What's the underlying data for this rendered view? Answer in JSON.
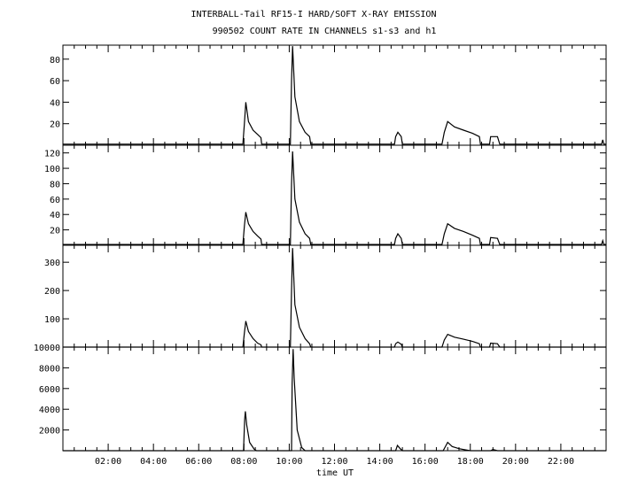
{
  "chart_data": {
    "type": "line",
    "title": "INTERBALL-Tail RF15-I HARD/SOFT X-RAY EMISSION",
    "subtitle": "990502  COUNT RATE IN CHANNELS s1-s3 and h1",
    "xlabel": "time UT",
    "xlim": [
      0,
      24
    ],
    "x_ticks": [
      2,
      4,
      6,
      8,
      10,
      12,
      14,
      16,
      18,
      20,
      22
    ],
    "x_tick_labels": [
      "02:00",
      "04:00",
      "06:00",
      "08:00",
      "10:00",
      "12:00",
      "14:00",
      "16:00",
      "18:00",
      "20:00",
      "22:00"
    ],
    "panels": [
      {
        "ylim": [
          0,
          93
        ],
        "y_ticks": [
          20,
          40,
          60,
          80
        ],
        "y_tick_labels": [
          "20",
          "40",
          "60",
          "80"
        ],
        "points": [
          [
            0,
            1
          ],
          [
            7.95,
            1
          ],
          [
            8.02,
            20
          ],
          [
            8.08,
            40
          ],
          [
            8.2,
            22
          ],
          [
            8.4,
            14
          ],
          [
            8.6,
            10
          ],
          [
            8.75,
            7
          ],
          [
            8.78,
            1
          ],
          [
            10.05,
            1
          ],
          [
            10.1,
            60
          ],
          [
            10.15,
            92
          ],
          [
            10.25,
            45
          ],
          [
            10.45,
            22
          ],
          [
            10.7,
            12
          ],
          [
            10.9,
            8
          ],
          [
            10.95,
            1
          ],
          [
            14.65,
            1
          ],
          [
            14.7,
            8
          ],
          [
            14.8,
            12
          ],
          [
            14.95,
            8
          ],
          [
            15.0,
            1
          ],
          [
            16.75,
            1
          ],
          [
            16.85,
            12
          ],
          [
            17.0,
            22
          ],
          [
            17.3,
            17
          ],
          [
            17.7,
            14
          ],
          [
            18.1,
            11
          ],
          [
            18.4,
            8
          ],
          [
            18.45,
            1
          ],
          [
            18.85,
            1
          ],
          [
            18.9,
            8
          ],
          [
            19.2,
            8
          ],
          [
            19.3,
            1
          ],
          [
            23.8,
            1
          ],
          [
            23.85,
            5
          ],
          [
            23.9,
            1
          ],
          [
            24,
            1
          ]
        ]
      },
      {
        "ylim": [
          0,
          130
        ],
        "y_ticks": [
          20,
          40,
          60,
          80,
          100,
          120
        ],
        "y_tick_labels": [
          "20",
          "40",
          "60",
          "80",
          "100",
          "120"
        ],
        "points": [
          [
            0,
            1
          ],
          [
            7.95,
            1
          ],
          [
            8.02,
            25
          ],
          [
            8.08,
            43
          ],
          [
            8.2,
            28
          ],
          [
            8.4,
            18
          ],
          [
            8.6,
            12
          ],
          [
            8.75,
            8
          ],
          [
            8.78,
            1
          ],
          [
            10.05,
            1
          ],
          [
            10.1,
            80
          ],
          [
            10.15,
            122
          ],
          [
            10.25,
            60
          ],
          [
            10.45,
            30
          ],
          [
            10.7,
            15
          ],
          [
            10.9,
            9
          ],
          [
            10.95,
            1
          ],
          [
            14.65,
            1
          ],
          [
            14.7,
            9
          ],
          [
            14.8,
            15
          ],
          [
            14.95,
            9
          ],
          [
            15.0,
            1
          ],
          [
            16.75,
            1
          ],
          [
            16.85,
            15
          ],
          [
            17.0,
            28
          ],
          [
            17.3,
            22
          ],
          [
            17.7,
            18
          ],
          [
            18.1,
            13
          ],
          [
            18.4,
            9
          ],
          [
            18.45,
            1
          ],
          [
            18.85,
            1
          ],
          [
            18.9,
            10
          ],
          [
            19.2,
            9
          ],
          [
            19.3,
            1
          ],
          [
            23.8,
            1
          ],
          [
            23.85,
            6
          ],
          [
            23.9,
            1
          ],
          [
            24,
            1
          ]
        ]
      },
      {
        "ylim": [
          0,
          360
        ],
        "y_ticks": [
          100,
          200,
          300
        ],
        "y_tick_labels": [
          "100",
          "200",
          "300"
        ],
        "points": [
          [
            0,
            0
          ],
          [
            7.95,
            0
          ],
          [
            8.02,
            50
          ],
          [
            8.08,
            92
          ],
          [
            8.2,
            55
          ],
          [
            8.4,
            30
          ],
          [
            8.6,
            14
          ],
          [
            8.75,
            8
          ],
          [
            8.78,
            0
          ],
          [
            10.05,
            0
          ],
          [
            10.1,
            200
          ],
          [
            10.15,
            350
          ],
          [
            10.25,
            150
          ],
          [
            10.45,
            70
          ],
          [
            10.7,
            30
          ],
          [
            10.9,
            12
          ],
          [
            10.95,
            0
          ],
          [
            14.65,
            0
          ],
          [
            14.7,
            12
          ],
          [
            14.8,
            18
          ],
          [
            14.95,
            10
          ],
          [
            15.0,
            0
          ],
          [
            16.75,
            0
          ],
          [
            16.85,
            25
          ],
          [
            17.0,
            45
          ],
          [
            17.3,
            35
          ],
          [
            17.7,
            28
          ],
          [
            18.1,
            20
          ],
          [
            18.4,
            12
          ],
          [
            18.45,
            0
          ],
          [
            18.85,
            0
          ],
          [
            18.9,
            14
          ],
          [
            19.2,
            12
          ],
          [
            19.3,
            0
          ],
          [
            24,
            0
          ]
        ]
      },
      {
        "ylim": [
          0,
          10000
        ],
        "y_ticks": [
          2000,
          4000,
          6000,
          8000,
          10000
        ],
        "y_tick_labels": [
          "2000",
          "4000",
          "6000",
          "8000",
          "10000"
        ],
        "points": [
          [
            0,
            0
          ],
          [
            7.98,
            0
          ],
          [
            8.03,
            3000
          ],
          [
            8.06,
            3800
          ],
          [
            8.12,
            2500
          ],
          [
            8.25,
            800
          ],
          [
            8.45,
            150
          ],
          [
            8.55,
            0
          ],
          [
            10.1,
            0
          ],
          [
            10.13,
            6500
          ],
          [
            10.17,
            9800
          ],
          [
            10.22,
            7000
          ],
          [
            10.35,
            2000
          ],
          [
            10.55,
            300
          ],
          [
            10.7,
            0
          ],
          [
            14.7,
            0
          ],
          [
            14.78,
            500
          ],
          [
            14.9,
            200
          ],
          [
            15.0,
            0
          ],
          [
            16.8,
            0
          ],
          [
            17.0,
            800
          ],
          [
            17.2,
            400
          ],
          [
            17.5,
            200
          ],
          [
            17.8,
            80
          ],
          [
            18.0,
            0
          ],
          [
            18.9,
            0
          ],
          [
            19.0,
            120
          ],
          [
            19.2,
            0
          ],
          [
            24,
            0
          ]
        ]
      }
    ]
  }
}
